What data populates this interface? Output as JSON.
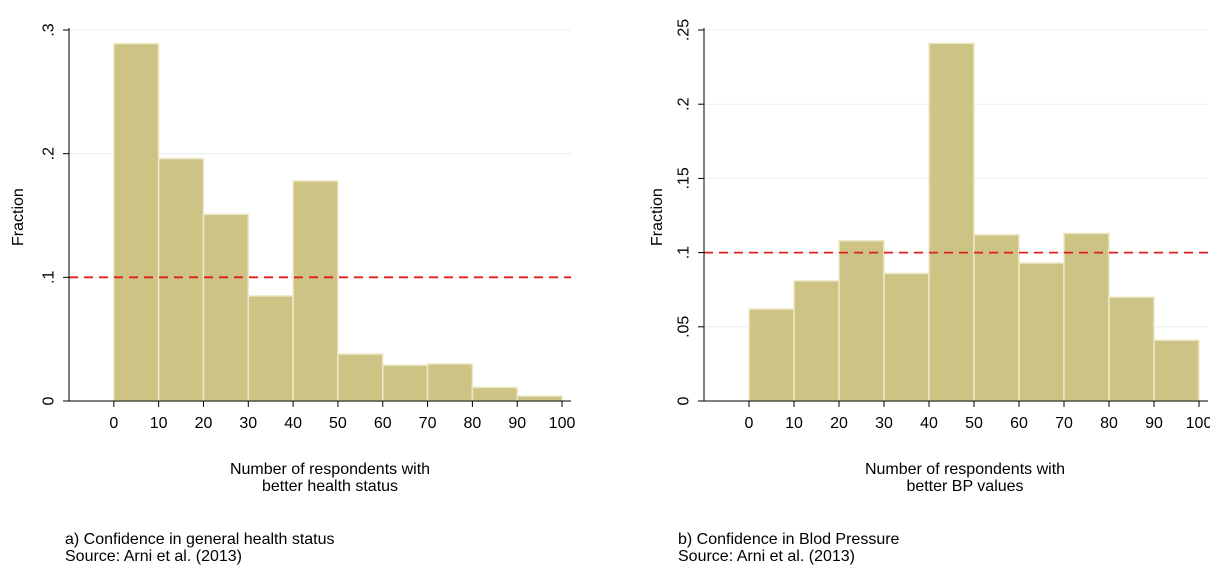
{
  "colors": {
    "bar_fill": "#ccc385",
    "bar_edge": "#ede9c8",
    "grid": "#e9edf1",
    "reference_line": "#e01f1f"
  },
  "chart_data": [
    {
      "type": "bar",
      "ylabel": "Fraction",
      "xlabel_lines": [
        "Number of respondents with",
        "better health status"
      ],
      "caption_lines": [
        "a) Confidence in general health status",
        "Source: Arni et al. (2013)"
      ],
      "bin_edges": [
        0,
        10,
        20,
        30,
        40,
        50,
        60,
        70,
        80,
        90,
        100
      ],
      "values": [
        0.289,
        0.196,
        0.151,
        0.085,
        0.178,
        0.038,
        0.029,
        0.03,
        0.011,
        0.004
      ],
      "xticks": [
        0,
        10,
        20,
        30,
        40,
        50,
        60,
        70,
        80,
        90,
        100
      ],
      "xtick_labels": [
        "0",
        "10",
        "20",
        "30",
        "40",
        "50",
        "60",
        "70",
        "80",
        "90",
        "100"
      ],
      "yticks": [
        0,
        0.1,
        0.2,
        0.3
      ],
      "ytick_labels": [
        "0",
        ".1",
        ".2",
        ".3"
      ],
      "xlim": [
        -10,
        102
      ],
      "ylim": [
        0,
        0.3
      ],
      "reference_line": {
        "y": 0.1,
        "style": "dashed"
      },
      "grid": true
    },
    {
      "type": "bar",
      "ylabel": "Fraction",
      "xlabel_lines": [
        "Number of respondents with",
        "better BP values"
      ],
      "caption_lines": [
        "b) Confidence in Blod Pressure",
        "Source: Arni et al. (2013)"
      ],
      "bin_edges": [
        0,
        10,
        20,
        30,
        40,
        50,
        60,
        70,
        80,
        90,
        100
      ],
      "values": [
        0.062,
        0.081,
        0.108,
        0.086,
        0.241,
        0.112,
        0.093,
        0.113,
        0.07,
        0.041
      ],
      "xticks": [
        0,
        10,
        20,
        30,
        40,
        50,
        60,
        70,
        80,
        90,
        100
      ],
      "xtick_labels": [
        "0",
        "10",
        "20",
        "30",
        "40",
        "50",
        "60",
        "70",
        "80",
        "90",
        "100"
      ],
      "yticks": [
        0,
        0.05,
        0.1,
        0.15,
        0.2,
        0.25
      ],
      "ytick_labels": [
        "0",
        ".05",
        ".1",
        ".15",
        ".2",
        ".25"
      ],
      "xlim": [
        -10,
        102
      ],
      "ylim": [
        0,
        0.25
      ],
      "reference_line": {
        "y": 0.1,
        "style": "dashed"
      },
      "grid": true
    }
  ]
}
